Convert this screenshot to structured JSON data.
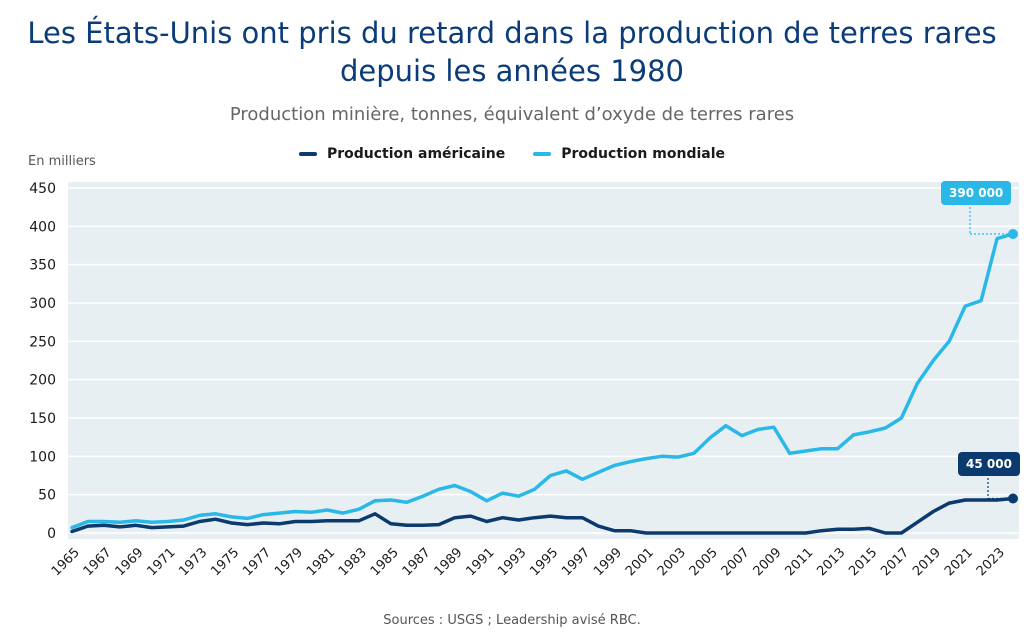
{
  "title_line1": "Les États-Unis ont pris du retard dans la production de terres rares",
  "title_line2": "depuis les années 1980",
  "subtitle": "Production minière, tonnes, équivalent d’oxyde de terres rares",
  "unit_label": "En milliers",
  "source": "Sources : USGS ; Leadership avisé RBC.",
  "colors": {
    "us": "#0b3a6e",
    "world": "#29b8e8",
    "plot_bg": "#e8eff2",
    "grid": "#ffffff"
  },
  "chart_data": {
    "type": "line",
    "title": "Les États-Unis ont pris du retard dans la production de terres rares depuis les années 1980",
    "subtitle": "Production minière, tonnes, équivalent d’oxyde de terres rares",
    "ylabel": "En milliers",
    "ylim": [
      0,
      450
    ],
    "yticks": [
      0,
      50,
      100,
      150,
      200,
      250,
      300,
      350,
      400,
      450
    ],
    "xticks": [
      1965,
      1967,
      1969,
      1971,
      1973,
      1975,
      1977,
      1979,
      1981,
      1983,
      1985,
      1987,
      1989,
      1991,
      1993,
      1995,
      1997,
      1999,
      2001,
      2003,
      2005,
      2007,
      2009,
      2011,
      2013,
      2015,
      2017,
      2019,
      2021,
      2023
    ],
    "grid": true,
    "legend": "top-center",
    "x": [
      1965,
      1966,
      1967,
      1968,
      1969,
      1970,
      1971,
      1972,
      1973,
      1974,
      1975,
      1976,
      1977,
      1978,
      1979,
      1980,
      1981,
      1982,
      1983,
      1984,
      1985,
      1986,
      1987,
      1988,
      1989,
      1990,
      1991,
      1992,
      1993,
      1994,
      1995,
      1996,
      1997,
      1998,
      1999,
      2000,
      2001,
      2002,
      2003,
      2004,
      2005,
      2006,
      2007,
      2008,
      2009,
      2010,
      2011,
      2012,
      2013,
      2014,
      2015,
      2016,
      2017,
      2018,
      2019,
      2020,
      2021,
      2022,
      2023,
      2024
    ],
    "series": [
      {
        "name": "Production américaine",
        "values": [
          2,
          9,
          10,
          8,
          10,
          7,
          8,
          9,
          15,
          18,
          13,
          11,
          13,
          12,
          15,
          15,
          16,
          16,
          16,
          25,
          12,
          10,
          10,
          11,
          20,
          22,
          15,
          20,
          17,
          20,
          22,
          20,
          20,
          9,
          3,
          3,
          0,
          0,
          0,
          0,
          0,
          0,
          0,
          0,
          0,
          0,
          0,
          3,
          5,
          5,
          6,
          0,
          0,
          14,
          28,
          39,
          43,
          43,
          43,
          45
        ]
      },
      {
        "name": "Production mondiale",
        "values": [
          7,
          15,
          15,
          14,
          16,
          14,
          15,
          17,
          23,
          25,
          21,
          19,
          24,
          26,
          28,
          27,
          30,
          26,
          31,
          42,
          43,
          40,
          48,
          57,
          62,
          54,
          42,
          52,
          48,
          57,
          75,
          81,
          70,
          79,
          88,
          93,
          97,
          100,
          99,
          104,
          124,
          140,
          127,
          135,
          138,
          104,
          107,
          110,
          110,
          128,
          132,
          137,
          150,
          195,
          225,
          250,
          296,
          303,
          384,
          390
        ]
      }
    ],
    "annotations": [
      {
        "label": "390 000",
        "series": "Production mondiale",
        "x": 2024,
        "y": 390
      },
      {
        "label": "45 000",
        "series": "Production américaine",
        "x": 2024,
        "y": 45
      }
    ]
  }
}
